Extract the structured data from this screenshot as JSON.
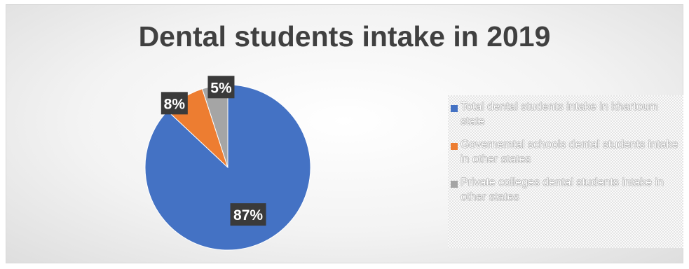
{
  "chart_data": {
    "type": "pie",
    "title": "Dental students intake in 2019",
    "categories": [
      "Total dental students intake in khartoum state",
      "Governemtal schools dental students intake in other states",
      "Private colleges dental students intake in other states"
    ],
    "values": [
      87,
      8,
      5
    ],
    "value_labels": [
      "87%",
      "8%",
      "5%"
    ],
    "colors": [
      "#4472C4",
      "#ED7D31",
      "#A5A5A5"
    ],
    "start_angle_deg": 0,
    "direction": "clockwise",
    "legend_position": "right"
  }
}
